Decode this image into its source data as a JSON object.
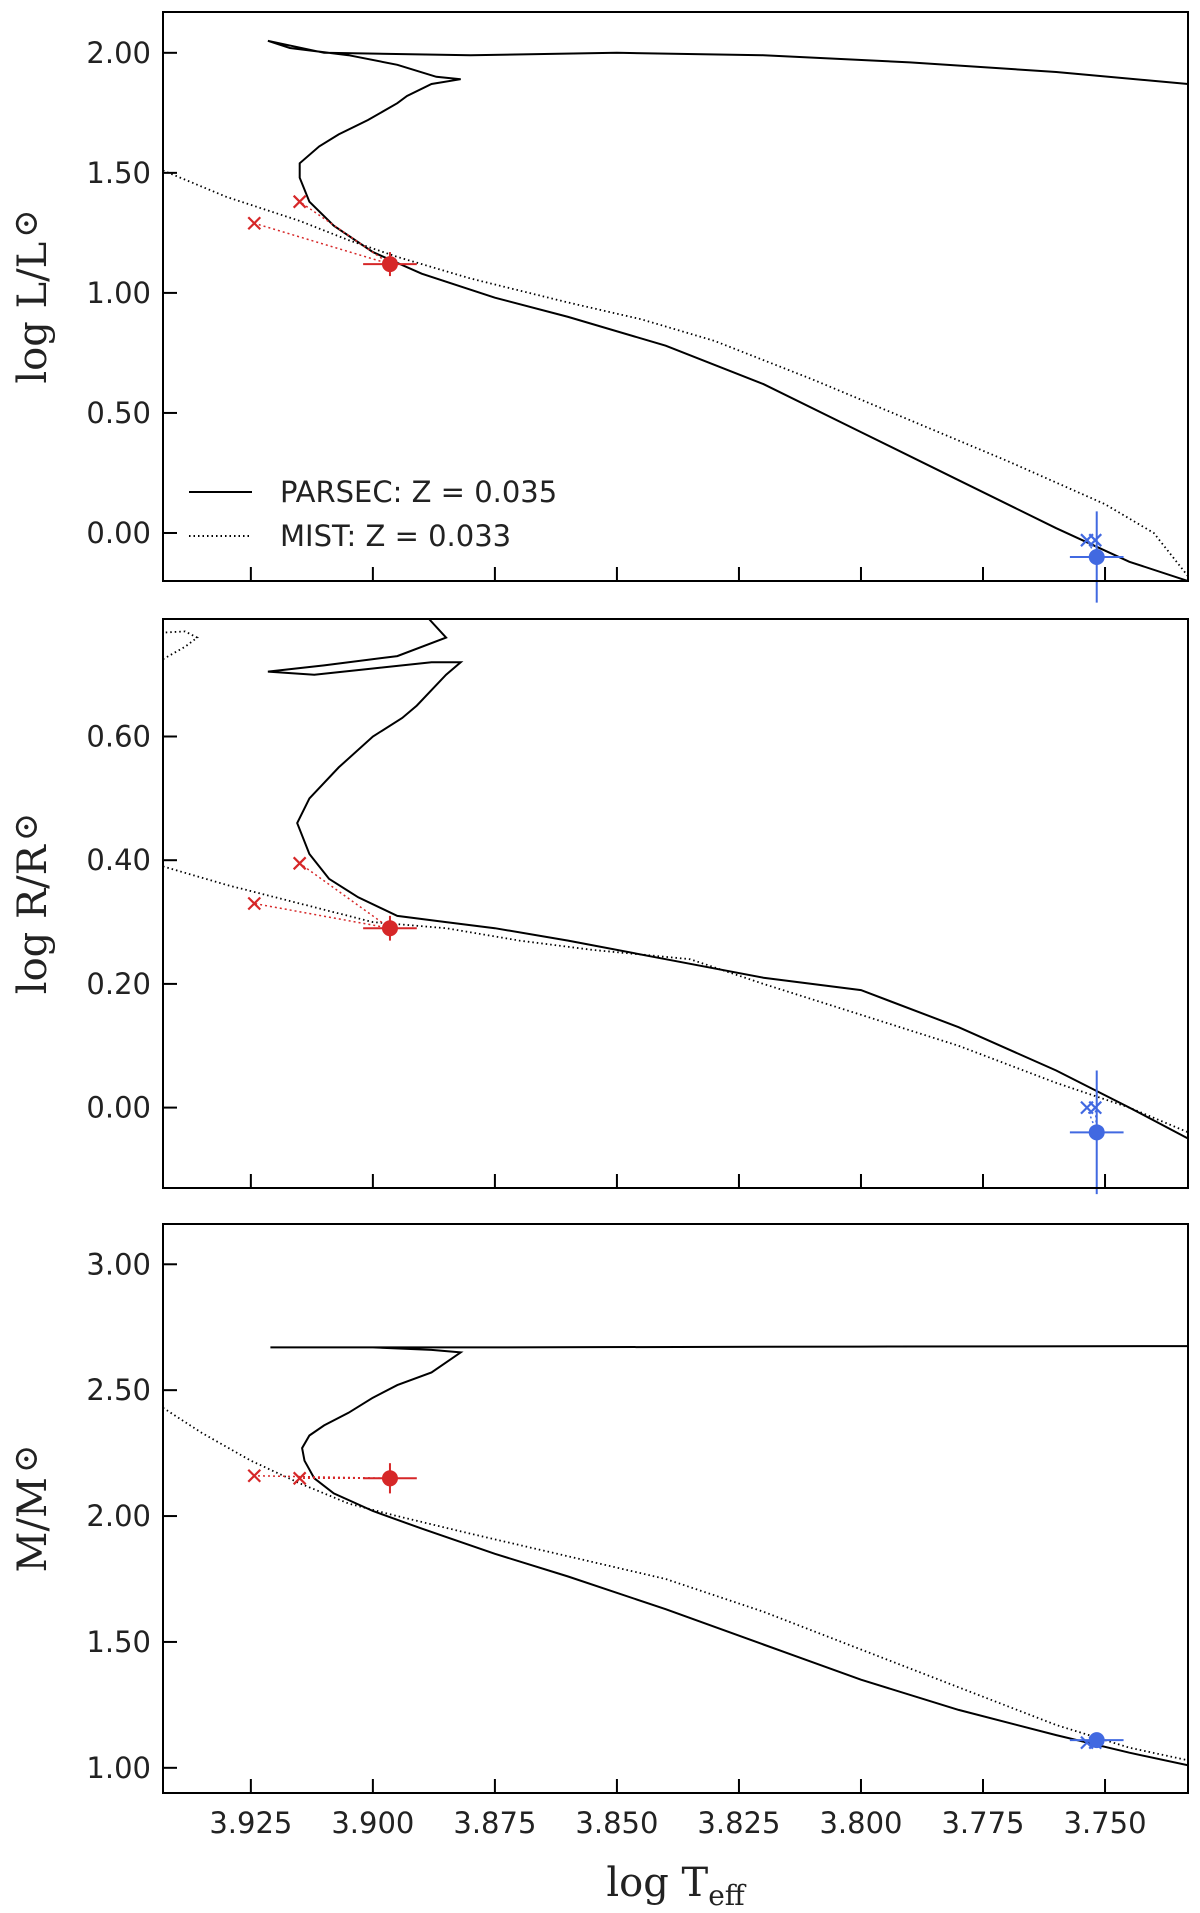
{
  "chart_data": [
    {
      "type": "line",
      "ylabel_main": "log L/L",
      "ylabel_sub": "",
      "ylabel_symbol": "⊙",
      "xlim": [
        3.943,
        3.733
      ],
      "ylim": [
        -0.2,
        2.17
      ],
      "yticks": [
        0.0,
        0.5,
        1.0,
        1.5,
        2.0
      ],
      "ytick_labels": [
        "0.00",
        "0.50",
        "1.00",
        "1.50",
        "2.00"
      ],
      "legend_position": "lower-left",
      "series": [
        {
          "name": "PARSEC: Z = 0.035",
          "style": "solid",
          "points": [
            [
              3.733,
              -0.2
            ],
            [
              3.745,
              -0.12
            ],
            [
              3.76,
              0.02
            ],
            [
              3.78,
              0.22
            ],
            [
              3.8,
              0.42
            ],
            [
              3.82,
              0.62
            ],
            [
              3.84,
              0.78
            ],
            [
              3.86,
              0.9
            ],
            [
              3.875,
              0.98
            ],
            [
              3.89,
              1.08
            ],
            [
              3.9,
              1.17
            ],
            [
              3.908,
              1.28
            ],
            [
              3.913,
              1.38
            ],
            [
              3.915,
              1.48
            ],
            [
              3.915,
              1.54
            ],
            [
              3.911,
              1.61
            ],
            [
              3.907,
              1.66
            ],
            [
              3.901,
              1.72
            ],
            [
              3.895,
              1.79
            ],
            [
              3.893,
              1.82
            ],
            [
              3.888,
              1.87
            ],
            [
              3.882,
              1.89
            ],
            [
              3.887,
              1.9
            ],
            [
              3.895,
              1.95
            ],
            [
              3.905,
              1.99
            ],
            [
              3.917,
              2.02
            ],
            [
              3.9215,
              2.05
            ],
            [
              3.91,
              2.0
            ],
            [
              3.88,
              1.99
            ],
            [
              3.85,
              2.0
            ],
            [
              3.82,
              1.99
            ],
            [
              3.79,
              1.96
            ],
            [
              3.76,
              1.92
            ],
            [
              3.733,
              1.87
            ]
          ]
        },
        {
          "name": "MIST: Z = 0.033",
          "style": "dotted",
          "points": [
            [
              3.943,
              1.51
            ],
            [
              3.93,
              1.4
            ],
            [
              3.915,
              1.3
            ],
            [
              3.905,
              1.22
            ],
            [
              3.895,
              1.15
            ],
            [
              3.88,
              1.06
            ],
            [
              3.86,
              0.96
            ],
            [
              3.845,
              0.89
            ],
            [
              3.83,
              0.8
            ],
            [
              3.81,
              0.64
            ],
            [
              3.79,
              0.47
            ],
            [
              3.77,
              0.3
            ],
            [
              3.75,
              0.12
            ],
            [
              3.74,
              0.0
            ],
            [
              3.733,
              -0.18
            ]
          ]
        }
      ],
      "observed": [
        {
          "color": "#d62728",
          "x": 3.8965,
          "y": 1.12,
          "xerr": 0.0055,
          "yerr": 0.05,
          "models": [
            {
              "x": 3.9243,
              "y": 1.29
            },
            {
              "x": 3.915,
              "y": 1.38
            }
          ]
        },
        {
          "color": "#4169e1",
          "x": 3.7517,
          "y": -0.1,
          "xerr": 0.0055,
          "yerr": 0.19,
          "models": [
            {
              "x": 3.7537,
              "y": -0.03
            },
            {
              "x": 3.752,
              "y": -0.03
            }
          ]
        }
      ]
    },
    {
      "type": "line",
      "ylabel_main": "log R/R",
      "ylabel_sub": "",
      "ylabel_symbol": "⊙",
      "xlim": [
        3.943,
        3.733
      ],
      "ylim": [
        -0.13,
        0.79
      ],
      "yticks": [
        0.0,
        0.2,
        0.4,
        0.6
      ],
      "ytick_labels": [
        "0.00",
        "0.20",
        "0.40",
        "0.60"
      ],
      "series": [
        {
          "name": "PARSEC: Z = 0.035",
          "style": "solid",
          "points": [
            [
              3.733,
              -0.05
            ],
            [
              3.745,
              0.0
            ],
            [
              3.76,
              0.06
            ],
            [
              3.78,
              0.13
            ],
            [
              3.8,
              0.19
            ],
            [
              3.82,
              0.21
            ],
            [
              3.84,
              0.24
            ],
            [
              3.86,
              0.27
            ],
            [
              3.875,
              0.29
            ],
            [
              3.885,
              0.3
            ],
            [
              3.895,
              0.31
            ],
            [
              3.903,
              0.34
            ],
            [
              3.909,
              0.37
            ],
            [
              3.913,
              0.41
            ],
            [
              3.9155,
              0.46
            ],
            [
              3.913,
              0.5
            ],
            [
              3.907,
              0.55
            ],
            [
              3.9,
              0.6
            ],
            [
              3.894,
              0.63
            ],
            [
              3.891,
              0.65
            ],
            [
              3.885,
              0.7
            ],
            [
              3.882,
              0.72
            ],
            [
              3.888,
              0.72
            ],
            [
              3.9,
              0.71
            ],
            [
              3.912,
              0.7
            ],
            [
              3.9215,
              0.705
            ],
            [
              3.91,
              0.715
            ],
            [
              3.895,
              0.73
            ],
            [
              3.885,
              0.76
            ],
            [
              3.8885,
              0.79
            ]
          ]
        },
        {
          "name": "MIST: Z = 0.033",
          "style": "dotted",
          "points": [
            [
              3.943,
              0.39
            ],
            [
              3.93,
              0.36
            ],
            [
              3.92,
              0.34
            ],
            [
              3.91,
              0.32
            ],
            [
              3.9,
              0.3
            ],
            [
              3.885,
              0.29
            ],
            [
              3.87,
              0.27
            ],
            [
              3.855,
              0.255
            ],
            [
              3.835,
              0.24
            ],
            [
              3.82,
              0.2
            ],
            [
              3.8,
              0.15
            ],
            [
              3.78,
              0.1
            ],
            [
              3.76,
              0.04
            ],
            [
              3.745,
              0.0
            ],
            [
              3.733,
              -0.04
            ]
          ]
        },
        {
          "name": "",
          "style": "dotted",
          "points": [
            [
              3.943,
              0.725
            ],
            [
              3.9385,
              0.745
            ],
            [
              3.936,
              0.76
            ],
            [
              3.9385,
              0.77
            ],
            [
              3.943,
              0.768
            ]
          ]
        }
      ],
      "observed": [
        {
          "color": "#d62728",
          "x": 3.8965,
          "y": 0.29,
          "xerr": 0.0055,
          "yerr": 0.02,
          "models": [
            {
              "x": 3.9243,
              "y": 0.33
            },
            {
              "x": 3.915,
              "y": 0.395
            }
          ]
        },
        {
          "color": "#4169e1",
          "x": 3.7517,
          "y": -0.04,
          "xerr": 0.0055,
          "yerr": 0.1,
          "models": [
            {
              "x": 3.7537,
              "y": 0.0
            },
            {
              "x": 3.752,
              "y": 0.0
            }
          ]
        }
      ]
    },
    {
      "type": "line",
      "ylabel_main": "M/M",
      "ylabel_sub": "",
      "ylabel_symbol": "⊙",
      "xlabel_main": "log T",
      "xlabel_sub": "eff",
      "xlim": [
        3.943,
        3.733
      ],
      "ylim": [
        0.9,
        3.16
      ],
      "yticks": [
        1.0,
        1.5,
        2.0,
        2.5,
        3.0
      ],
      "ytick_labels": [
        "1.00",
        "1.50",
        "2.00",
        "2.50",
        "3.00"
      ],
      "xticks": [
        3.925,
        3.9,
        3.875,
        3.85,
        3.825,
        3.8,
        3.775,
        3.75
      ],
      "xtick_labels": [
        "3.925",
        "3.900",
        "3.875",
        "3.850",
        "3.825",
        "3.800",
        "3.775",
        "3.750"
      ],
      "series": [
        {
          "name": "PARSEC: Z = 0.035",
          "style": "solid",
          "points": [
            [
              3.733,
              1.01
            ],
            [
              3.745,
              1.06
            ],
            [
              3.76,
              1.13
            ],
            [
              3.78,
              1.23
            ],
            [
              3.8,
              1.35
            ],
            [
              3.82,
              1.49
            ],
            [
              3.84,
              1.63
            ],
            [
              3.86,
              1.76
            ],
            [
              3.875,
              1.85
            ],
            [
              3.89,
              1.95
            ],
            [
              3.9,
              2.02
            ],
            [
              3.908,
              2.09
            ],
            [
              3.912,
              2.15
            ],
            [
              3.914,
              2.22
            ],
            [
              3.9145,
              2.27
            ],
            [
              3.913,
              2.32
            ],
            [
              3.91,
              2.36
            ],
            [
              3.905,
              2.41
            ],
            [
              3.9,
              2.47
            ],
            [
              3.895,
              2.52
            ],
            [
              3.888,
              2.57
            ],
            [
              3.882,
              2.65
            ],
            [
              3.888,
              2.66
            ],
            [
              3.9,
              2.67
            ],
            [
              3.921,
              2.67
            ],
            [
              3.88,
              2.67
            ],
            [
              3.8,
              2.673
            ],
            [
              3.733,
              2.675
            ]
          ]
        },
        {
          "name": "MIST: Z = 0.033",
          "style": "dotted",
          "points": [
            [
              3.943,
              2.43
            ],
            [
              3.935,
              2.33
            ],
            [
              3.925,
              2.22
            ],
            [
              3.915,
              2.13
            ],
            [
              3.905,
              2.05
            ],
            [
              3.895,
              2.0
            ],
            [
              3.88,
              1.93
            ],
            [
              3.86,
              1.84
            ],
            [
              3.84,
              1.75
            ],
            [
              3.82,
              1.62
            ],
            [
              3.8,
              1.47
            ],
            [
              3.78,
              1.32
            ],
            [
              3.76,
              1.17
            ],
            [
              3.745,
              1.08
            ],
            [
              3.733,
              1.03
            ]
          ]
        }
      ],
      "observed": [
        {
          "color": "#d62728",
          "x": 3.8965,
          "y": 2.15,
          "xerr": 0.0055,
          "yerr": 0.06,
          "models": [
            {
              "x": 3.9243,
              "y": 2.16
            },
            {
              "x": 3.915,
              "y": 2.15
            }
          ]
        },
        {
          "color": "#4169e1",
          "x": 3.7517,
          "y": 1.11,
          "xerr": 0.0055,
          "yerr": 0.015,
          "models": [
            {
              "x": 3.7537,
              "y": 1.1
            },
            {
              "x": 3.752,
              "y": 1.1
            }
          ]
        }
      ]
    }
  ]
}
